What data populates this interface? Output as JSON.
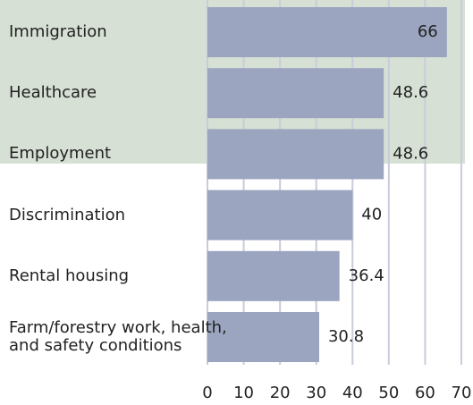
{
  "chart_data": {
    "type": "bar",
    "orientation": "horizontal",
    "categories": [
      "Immigration",
      "Healthcare",
      "Employment",
      "Discrimination",
      "Rental housing",
      "Farm/forestry work, health,\nand safety conditions"
    ],
    "values": [
      66,
      48.6,
      48.6,
      40,
      36.4,
      30.8
    ],
    "color": "#9ba5bf",
    "xlim": [
      0,
      70
    ],
    "xticks": [
      0,
      10,
      20,
      30,
      40,
      50,
      60,
      70
    ],
    "grid": true
  }
}
